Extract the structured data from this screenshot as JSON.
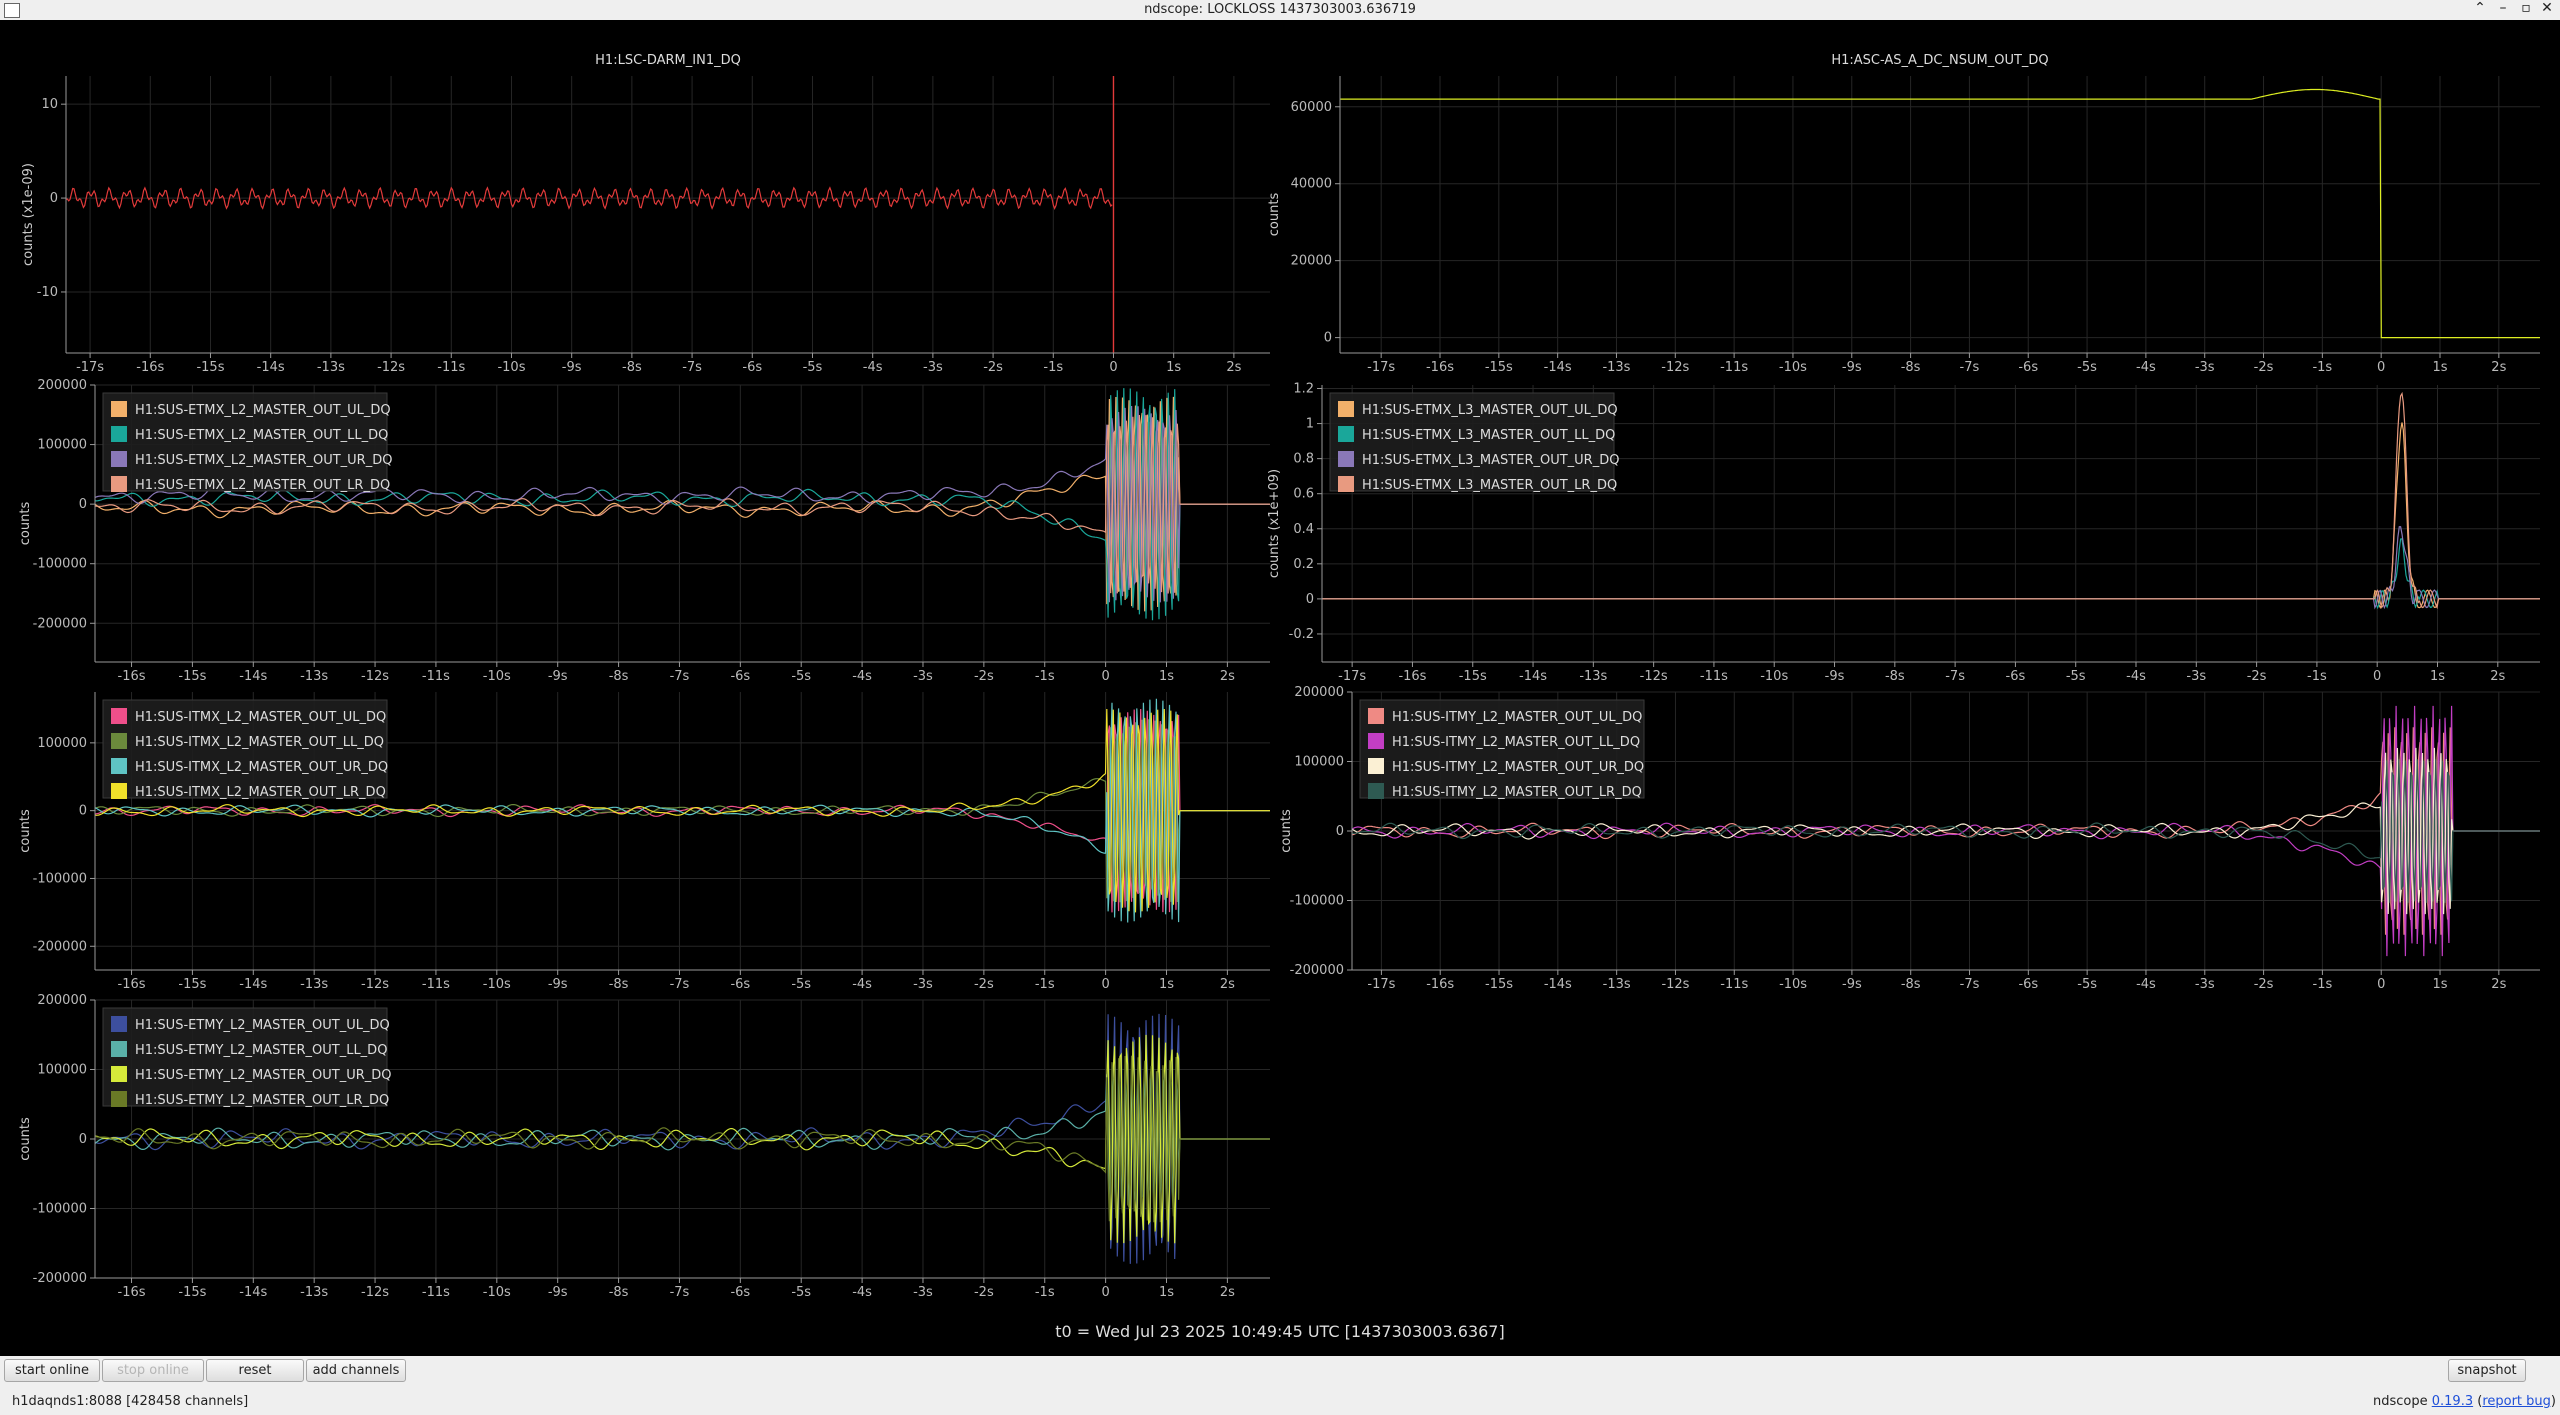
{
  "window": {
    "title": "ndscope: LOCKLOSS 1437303003.636719"
  },
  "t0_label": "t0 = Wed Jul 23 2025 10:49:45 UTC [1437303003.6367]",
  "toolbar": {
    "start_online": "start online",
    "stop_online": "stop online",
    "reset": "reset",
    "add_channels": "add channels",
    "snapshot": "snapshot"
  },
  "status": {
    "server": "h1daqnds1:8088  [428458 channels]",
    "version_prefix": "ndscope ",
    "version_link": "0.19.3",
    "report_bug": "report bug"
  },
  "colors": {
    "background": "#000000",
    "grid": "#262626",
    "axis": "#9a9a9a"
  },
  "chart_data": [
    {
      "type": "line",
      "title": "H1:LSC-DARM_IN1_DQ",
      "ylabel": "counts (x1e-09)",
      "xlim": [
        -17.4,
        2.6
      ],
      "ylim": [
        -16.5,
        13
      ],
      "yticks": [
        -10,
        0,
        10
      ],
      "xticks": [
        -17,
        -16,
        -15,
        -14,
        -13,
        -12,
        -11,
        -10,
        -9,
        -8,
        -7,
        -6,
        -5,
        -4,
        -3,
        -2,
        -1,
        0,
        1,
        2
      ],
      "xticklabels": [
        "-17s",
        "-16s",
        "-15s",
        "-14s",
        "-13s",
        "-12s",
        "-11s",
        "-10s",
        "-9s",
        "-8s",
        "-7s",
        "-6s",
        "-5s",
        "-4s",
        "-3s",
        "-2s",
        "-1s",
        "0",
        "1s",
        "2s"
      ],
      "show_legend": false,
      "series": [
        {
          "color": "#e23a3a",
          "shape": "lockloss-end",
          "amplitude": 1.1,
          "offset": 0,
          "t_end": 0,
          "trace_spike": true
        }
      ]
    },
    {
      "type": "line",
      "title": "H1:ASC-AS_A_DC_NSUM_OUT_DQ",
      "ylabel": "counts",
      "xlim": [
        -17.7,
        2.7
      ],
      "ylim": [
        -4000,
        68000
      ],
      "yticks": [
        0,
        20000,
        40000,
        60000
      ],
      "xticks": [
        -17,
        -16,
        -15,
        -14,
        -13,
        -12,
        -11,
        -10,
        -9,
        -8,
        -7,
        -6,
        -5,
        -4,
        -3,
        -2,
        -1,
        0,
        1,
        2
      ],
      "xticklabels": [
        "-17s",
        "-16s",
        "-15s",
        "-14s",
        "-13s",
        "-12s",
        "-11s",
        "-10s",
        "-9s",
        "-8s",
        "-7s",
        "-6s",
        "-5s",
        "-4s",
        "-3s",
        "-2s",
        "-1s",
        "0",
        "1s",
        "2s"
      ],
      "show_legend": false,
      "series": [
        {
          "color": "#ddee22",
          "shape": "drop",
          "level": 62000,
          "after": 0,
          "bump": 2500
        }
      ]
    },
    {
      "type": "line",
      "ylabel": "counts",
      "xlim": [
        -16.6,
        2.7
      ],
      "ylim": [
        -265000,
        200000
      ],
      "yticks": [
        -200000,
        -100000,
        0,
        100000,
        200000
      ],
      "xticks": [
        -16,
        -15,
        -14,
        -13,
        -12,
        -11,
        -10,
        -9,
        -8,
        -7,
        -6,
        -5,
        -4,
        -3,
        -2,
        -1,
        0,
        1,
        2
      ],
      "xticklabels": [
        "-16s",
        "-15s",
        "-14s",
        "-13s",
        "-12s",
        "-11s",
        "-10s",
        "-9s",
        "-8s",
        "-7s",
        "-6s",
        "-5s",
        "-4s",
        "-3s",
        "-2s",
        "-1s",
        "0",
        "1s",
        "2s"
      ],
      "show_legend": true,
      "series": [
        {
          "name": "H1:SUS-ETMX_L2_MASTER_OUT_UL_DQ",
          "color": "#f2b06a",
          "shape": "osc-diverge",
          "amplitude": 13000,
          "offset": -8000,
          "diverge": 60000
        },
        {
          "name": "H1:SUS-ETMX_L2_MASTER_OUT_LL_DQ",
          "color": "#1aa79a",
          "shape": "osc-diverge",
          "amplitude": 13000,
          "offset": 10000,
          "diverge": -65000
        },
        {
          "name": "H1:SUS-ETMX_L2_MASTER_OUT_UR_DQ",
          "color": "#8a78b8",
          "shape": "osc-diverge",
          "amplitude": 13000,
          "offset": 15000,
          "diverge": 55000
        },
        {
          "name": "H1:SUS-ETMX_L2_MASTER_OUT_LR_DQ",
          "color": "#e89a80",
          "shape": "osc-diverge",
          "amplitude": 13000,
          "offset": -5000,
          "diverge": -50000
        }
      ]
    },
    {
      "type": "line",
      "ylabel": "counts (x1e+09)",
      "xlim": [
        -17.5,
        2.7
      ],
      "ylim": [
        -0.36,
        1.22
      ],
      "yticks": [
        -0.2,
        0,
        0.2,
        0.4,
        0.6,
        0.8,
        1,
        1.2
      ],
      "xticks": [
        -17,
        -16,
        -15,
        -14,
        -13,
        -12,
        -11,
        -10,
        -9,
        -8,
        -7,
        -6,
        -5,
        -4,
        -3,
        -2,
        -1,
        0,
        1,
        2
      ],
      "xticklabels": [
        "-17s",
        "-16s",
        "-15s",
        "-14s",
        "-13s",
        "-12s",
        "-11s",
        "-10s",
        "-9s",
        "-8s",
        "-7s",
        "-6s",
        "-5s",
        "-4s",
        "-3s",
        "-2s",
        "-1s",
        "0",
        "1s",
        "2s"
      ],
      "show_legend": true,
      "series": [
        {
          "name": "H1:SUS-ETMX_L3_MASTER_OUT_UL_DQ",
          "color": "#f2b06a",
          "shape": "flat-spike",
          "spike": 1.0
        },
        {
          "name": "H1:SUS-ETMX_L3_MASTER_OUT_LL_DQ",
          "color": "#1aa79a",
          "shape": "flat-spike",
          "spike": 0.3
        },
        {
          "name": "H1:SUS-ETMX_L3_MASTER_OUT_UR_DQ",
          "color": "#8a78b8",
          "shape": "flat-spike",
          "spike": 0.4
        },
        {
          "name": "H1:SUS-ETMX_L3_MASTER_OUT_LR_DQ",
          "color": "#e89a80",
          "shape": "flat-spike",
          "spike": 1.22
        }
      ]
    },
    {
      "type": "line",
      "ylabel": "counts",
      "xlim": [
        -16.6,
        2.7
      ],
      "ylim": [
        -235000,
        175000
      ],
      "yticks": [
        -200000,
        -100000,
        0,
        100000
      ],
      "xticks": [
        -16,
        -15,
        -14,
        -13,
        -12,
        -11,
        -10,
        -9,
        -8,
        -7,
        -6,
        -5,
        -4,
        -3,
        -2,
        -1,
        0,
        1,
        2
      ],
      "xticklabels": [
        "-16s",
        "-15s",
        "-14s",
        "-13s",
        "-12s",
        "-11s",
        "-10s",
        "-9s",
        "-8s",
        "-7s",
        "-6s",
        "-5s",
        "-4s",
        "-3s",
        "-2s",
        "-1s",
        "0",
        "1s",
        "2s"
      ],
      "show_legend": true,
      "series": [
        {
          "name": "H1:SUS-ITMX_L2_MASTER_OUT_UL_DQ",
          "color": "#ef4f8a",
          "shape": "osc-diverge",
          "amplitude": 8000,
          "offset": 0,
          "diverge": -50000
        },
        {
          "name": "H1:SUS-ITMX_L2_MASTER_OUT_LL_DQ",
          "color": "#6b8a3c",
          "shape": "osc-diverge",
          "amplitude": 8000,
          "offset": 0,
          "diverge": 45000
        },
        {
          "name": "H1:SUS-ITMX_L2_MASTER_OUT_UR_DQ",
          "color": "#5fc4c4",
          "shape": "osc-diverge",
          "amplitude": 8000,
          "offset": 0,
          "diverge": -55000
        },
        {
          "name": "H1:SUS-ITMX_L2_MASTER_OUT_LR_DQ",
          "color": "#f0e02a",
          "shape": "osc-diverge",
          "amplitude": 8000,
          "offset": 0,
          "diverge": 50000
        }
      ]
    },
    {
      "type": "line",
      "ylabel": "counts",
      "xlim": [
        -17.5,
        2.7
      ],
      "ylim": [
        -200000,
        200000
      ],
      "yticks": [
        -200000,
        -100000,
        0,
        100000,
        200000
      ],
      "xticks": [
        -17,
        -16,
        -15,
        -14,
        -13,
        -12,
        -11,
        -10,
        -9,
        -8,
        -7,
        -6,
        -5,
        -4,
        -3,
        -2,
        -1,
        0,
        1,
        2
      ],
      "xticklabels": [
        "-17s",
        "-16s",
        "-15s",
        "-14s",
        "-13s",
        "-12s",
        "-11s",
        "-10s",
        "-9s",
        "-8s",
        "-7s",
        "-6s",
        "-5s",
        "-4s",
        "-3s",
        "-2s",
        "-1s",
        "0",
        "1s",
        "2s"
      ],
      "show_legend": true,
      "series": [
        {
          "name": "H1:SUS-ITMY_L2_MASTER_OUT_UL_DQ",
          "color": "#ef8a84",
          "shape": "osc-diverge",
          "amplitude": 10000,
          "offset": 0,
          "diverge": 50000
        },
        {
          "name": "H1:SUS-ITMY_L2_MASTER_OUT_LL_DQ",
          "color": "#c23ec4",
          "shape": "osc-diverge",
          "amplitude": 10000,
          "offset": 0,
          "diverge": -60000
        },
        {
          "name": "H1:SUS-ITMY_L2_MASTER_OUT_UR_DQ",
          "color": "#fbf0d4",
          "shape": "osc-diverge",
          "amplitude": 10000,
          "offset": 0,
          "diverge": 40000
        },
        {
          "name": "H1:SUS-ITMY_L2_MASTER_OUT_LR_DQ",
          "color": "#2e5a52",
          "shape": "osc-diverge",
          "amplitude": 10000,
          "offset": 0,
          "diverge": -35000
        }
      ]
    },
    {
      "type": "line",
      "ylabel": "counts",
      "xlim": [
        -16.6,
        2.7
      ],
      "ylim": [
        -200000,
        200000
      ],
      "yticks": [
        -200000,
        -100000,
        0,
        100000,
        200000
      ],
      "xticks": [
        -16,
        -15,
        -14,
        -13,
        -12,
        -11,
        -10,
        -9,
        -8,
        -7,
        -6,
        -5,
        -4,
        -3,
        -2,
        -1,
        0,
        1,
        2
      ],
      "xticklabels": [
        "-16s",
        "-15s",
        "-14s",
        "-13s",
        "-12s",
        "-11s",
        "-10s",
        "-9s",
        "-8s",
        "-7s",
        "-6s",
        "-5s",
        "-4s",
        "-3s",
        "-2s",
        "-1s",
        "0",
        "1s",
        "2s"
      ],
      "show_legend": true,
      "series": [
        {
          "name": "H1:SUS-ETMY_L2_MASTER_OUT_UL_DQ",
          "color": "#3d4f9e",
          "shape": "osc-diverge",
          "amplitude": 14000,
          "offset": 0,
          "diverge": 60000
        },
        {
          "name": "H1:SUS-ETMY_L2_MASTER_OUT_LL_DQ",
          "color": "#5ab0a8",
          "shape": "osc-diverge",
          "amplitude": 14000,
          "offset": 0,
          "diverge": 35000
        },
        {
          "name": "H1:SUS-ETMY_L2_MASTER_OUT_UR_DQ",
          "color": "#d6ea3a",
          "shape": "osc-diverge",
          "amplitude": 14000,
          "offset": 0,
          "diverge": -50000
        },
        {
          "name": "H1:SUS-ETMY_L2_MASTER_OUT_LR_DQ",
          "color": "#6a7a26",
          "shape": "osc-diverge",
          "amplitude": 14000,
          "offset": 0,
          "diverge": -40000
        }
      ]
    }
  ]
}
